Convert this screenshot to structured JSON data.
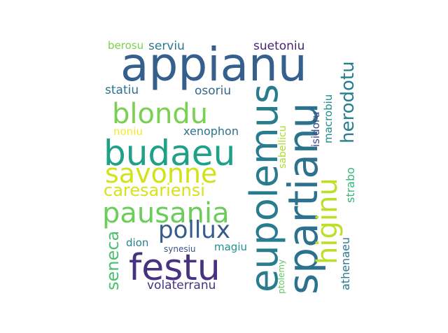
{
  "words": [
    {
      "id": "appianu",
      "text": "appianu",
      "color": "#355f8d"
    },
    {
      "id": "spartianu",
      "text": "spartianu",
      "color": "#2c728e"
    },
    {
      "id": "eupolemus",
      "text": "eupolemus",
      "color": "#287c8e"
    },
    {
      "id": "budaeu",
      "text": "budaeu",
      "color": "#1fa187"
    },
    {
      "id": "festu",
      "text": "festu",
      "color": "#46327e"
    },
    {
      "id": "blondu",
      "text": "blondu",
      "color": "#7ad151"
    },
    {
      "id": "savonne",
      "text": "savonne",
      "color": "#d2e21b"
    },
    {
      "id": "pausania",
      "text": "pausania",
      "color": "#6ccd5a"
    },
    {
      "id": "higinu",
      "text": "higinu",
      "color": "#bddf26"
    },
    {
      "id": "pollux",
      "text": "pollux",
      "color": "#365c8d"
    },
    {
      "id": "herodotu",
      "text": "herodotu",
      "color": "#277f8e"
    },
    {
      "id": "caresariensi",
      "text": "caresariensi",
      "color": "#d8e219"
    },
    {
      "id": "seneca",
      "text": "seneca",
      "color": "#4ac16d"
    },
    {
      "id": "volaterranu",
      "text": "volaterranu",
      "color": "#46337e"
    },
    {
      "id": "xenophon",
      "text": "xenophon",
      "color": "#2c738e"
    },
    {
      "id": "athenaeu",
      "text": "athenaeu",
      "color": "#2a788e"
    },
    {
      "id": "strabo",
      "text": "strabo",
      "color": "#35b779"
    },
    {
      "id": "statiu",
      "text": "statiu",
      "color": "#2c728e"
    },
    {
      "id": "osoriu",
      "text": "osoriu",
      "color": "#31688e"
    },
    {
      "id": "suetoniu",
      "text": "suetoniu",
      "color": "#482475"
    },
    {
      "id": "serviu",
      "text": "serviu",
      "color": "#2a788e"
    },
    {
      "id": "berosu",
      "text": "berosu",
      "color": "#7ad151"
    },
    {
      "id": "noniu",
      "text": "noniu",
      "color": "#fde725"
    },
    {
      "id": "isidoru",
      "text": "isidoru",
      "color": "#3f4889"
    },
    {
      "id": "macrobiu",
      "text": "macrobiu",
      "color": "#228c8d"
    },
    {
      "id": "sabellicu",
      "text": "sabellicu",
      "color": "#addc30"
    },
    {
      "id": "dion",
      "text": "dion",
      "color": "#25838e"
    },
    {
      "id": "magiu",
      "text": "magiu",
      "color": "#21918c"
    },
    {
      "id": "synesiu",
      "text": "synesiu",
      "color": "#3b528b"
    },
    {
      "id": "ptolemy",
      "text": "ptolemy",
      "color": "#5ec962"
    }
  ]
}
